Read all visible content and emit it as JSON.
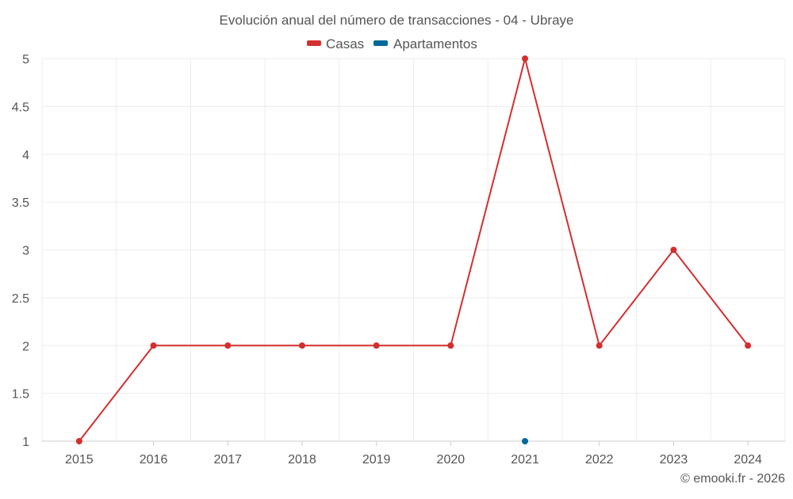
{
  "chart_data": {
    "type": "line",
    "title": "Evolución anual del número de transacciones - 04 - Ubraye",
    "categories": [
      "2015",
      "2016",
      "2017",
      "2018",
      "2019",
      "2020",
      "2021",
      "2022",
      "2023",
      "2024"
    ],
    "series": [
      {
        "name": "Casas",
        "color": "#d32f2f",
        "values": [
          1,
          2,
          2,
          2,
          2,
          2,
          5,
          2,
          3,
          2
        ]
      },
      {
        "name": "Apartamentos",
        "color": "#01689b",
        "values": [
          null,
          null,
          null,
          null,
          null,
          null,
          1,
          null,
          null,
          null
        ]
      }
    ],
    "y_ticks": [
      "1",
      "1.5",
      "2",
      "2.5",
      "3",
      "3.5",
      "4",
      "4.5",
      "5"
    ],
    "ylim": [
      1,
      5
    ],
    "grid": true,
    "legend_position": "top-center",
    "credit": "© emooki.fr - 2026"
  }
}
